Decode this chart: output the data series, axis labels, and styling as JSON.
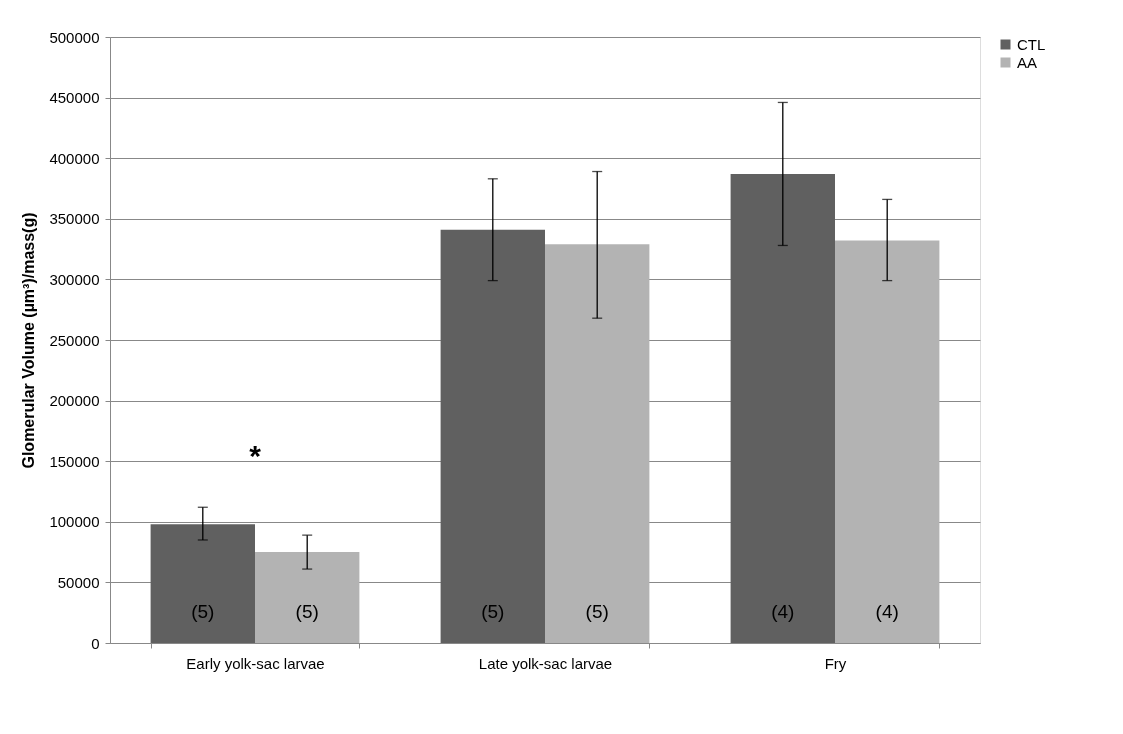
{
  "chart_data": {
    "type": "bar",
    "ylabel": "Glomerular Volume (µm³)/mass(g)",
    "categories": [
      "Early yolk-sac larvae",
      "Late yolk-sac larvae",
      "Fry"
    ],
    "series": [
      {
        "name": "CTL",
        "color": "#606060",
        "values": [
          98000,
          341000,
          387000
        ],
        "errors": [
          [
            85000,
            112000
          ],
          [
            299000,
            383000
          ],
          [
            328000,
            446000
          ]
        ]
      },
      {
        "name": "AA",
        "color": "#b3b3b3",
        "values": [
          75000,
          329000,
          332000
        ],
        "errors": [
          [
            61000,
            89000
          ],
          [
            268000,
            389000
          ],
          [
            299000,
            366000
          ]
        ]
      }
    ],
    "ylim": [
      0,
      500000
    ],
    "yticks": [
      0,
      50000,
      100000,
      150000,
      200000,
      250000,
      300000,
      350000,
      400000,
      450000,
      500000
    ],
    "grid": "y",
    "legend": "right",
    "annotations": [
      "*",
      "(5)",
      "(5)",
      "(4)",
      "(5)",
      "(5)",
      "(4)"
    ]
  }
}
